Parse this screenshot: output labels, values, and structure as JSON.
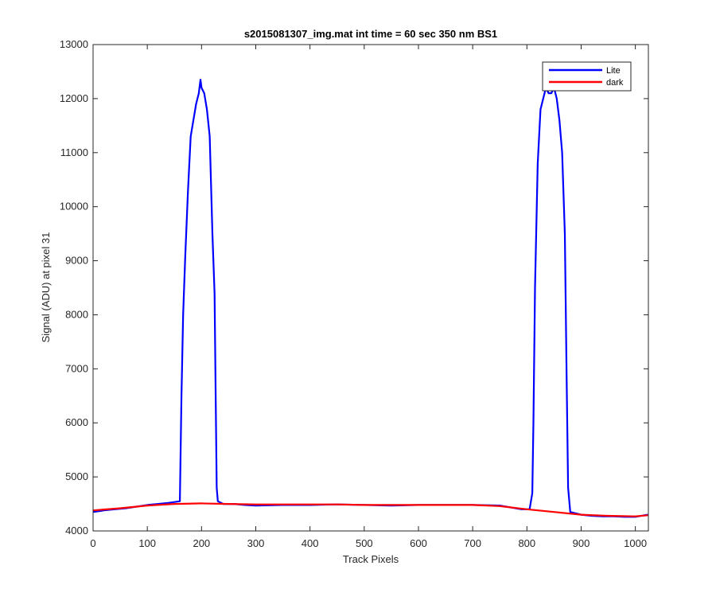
{
  "chart_data": {
    "type": "line",
    "title": "s2015081307_img.mat int time = 60 sec  350 nm BS1",
    "xlabel": "Track Pixels",
    "ylabel": "Signal (ADU) at pixel 31",
    "xlim": [
      0,
      1024
    ],
    "ylim": [
      4000,
      13000
    ],
    "xticks": [
      0,
      100,
      200,
      300,
      400,
      500,
      600,
      700,
      800,
      900,
      1000
    ],
    "yticks": [
      4000,
      5000,
      6000,
      7000,
      8000,
      9000,
      10000,
      11000,
      12000,
      13000
    ],
    "xtick_labels": [
      "0",
      "100",
      "200",
      "300",
      "400",
      "500",
      "600",
      "700",
      "800",
      "900",
      "1000"
    ],
    "ytick_labels": [
      "4000",
      "5000",
      "6000",
      "7000",
      "8000",
      "9000",
      "10000",
      "11000",
      "12000",
      "13000"
    ],
    "grid": false,
    "legend_position": "top-right",
    "series": [
      {
        "name": "Lite",
        "color": "#0000ff",
        "x": [
          0,
          20,
          40,
          60,
          80,
          100,
          120,
          140,
          160,
          163,
          166,
          170,
          175,
          180,
          185,
          190,
          195,
          198,
          200,
          205,
          210,
          215,
          220,
          224,
          226,
          228,
          230,
          240,
          260,
          280,
          300,
          350,
          400,
          450,
          500,
          550,
          600,
          650,
          700,
          750,
          790,
          805,
          810,
          812,
          815,
          820,
          825,
          830,
          835,
          840,
          845,
          850,
          855,
          860,
          865,
          870,
          873,
          876,
          880,
          900,
          920,
          940,
          960,
          980,
          1000,
          1023
        ],
        "y": [
          4350,
          4380,
          4400,
          4420,
          4450,
          4480,
          4500,
          4520,
          4550,
          6500,
          8000,
          9100,
          10300,
          11300,
          11600,
          11900,
          12100,
          12350,
          12200,
          12100,
          11800,
          11300,
          9500,
          8400,
          6500,
          4800,
          4550,
          4500,
          4500,
          4480,
          4470,
          4480,
          4480,
          4490,
          4480,
          4470,
          4480,
          4480,
          4480,
          4470,
          4400,
          4400,
          4700,
          6000,
          8500,
          10800,
          11800,
          12000,
          12200,
          12100,
          12100,
          12200,
          12000,
          11600,
          11000,
          9500,
          7000,
          4800,
          4350,
          4300,
          4280,
          4270,
          4270,
          4260,
          4260,
          4300
        ]
      },
      {
        "name": "dark",
        "color": "#ff0000",
        "x": [
          0,
          50,
          100,
          150,
          200,
          250,
          300,
          350,
          400,
          450,
          500,
          550,
          600,
          650,
          700,
          750,
          800,
          850,
          900,
          950,
          1000,
          1023
        ],
        "y": [
          4380,
          4420,
          4470,
          4500,
          4510,
          4500,
          4490,
          4490,
          4490,
          4490,
          4480,
          4480,
          4480,
          4480,
          4480,
          4460,
          4400,
          4350,
          4300,
          4280,
          4270,
          4290
        ]
      }
    ]
  }
}
